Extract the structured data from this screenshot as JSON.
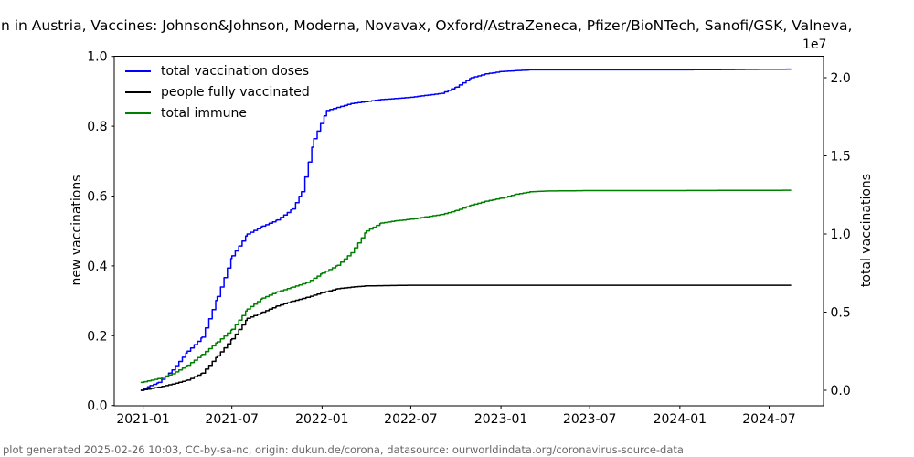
{
  "title_visible": "n in Austria, Vaccines: Johnson&Johnson, Moderna, Novavax, Oxford/AstraZeneca, Pfizer/BioNTech, Sanofi/GSK, Valneva,",
  "footer": "plot generated 2025-02-26 10:03, CC-by-sa-nc, origin: dukun.de/corona, datasource: ourworldindata.org/coronavirus-source-data",
  "axes": {
    "left": {
      "label": "new vaccinations",
      "ticks": [
        "0.0",
        "0.2",
        "0.4",
        "0.6",
        "0.8",
        "1.0"
      ],
      "range": [
        0.0,
        1.0
      ]
    },
    "right": {
      "label": "total vaccinations",
      "offset_text": "1e7",
      "ticks": [
        "0.0",
        "0.5",
        "1.0",
        "1.5",
        "2.0"
      ],
      "range": [
        0.0,
        2.0
      ]
    },
    "x": {
      "ticks": [
        "2021-01",
        "2021-07",
        "2022-01",
        "2022-07",
        "2023-01",
        "2023-07",
        "2024-01",
        "2024-07"
      ]
    }
  },
  "chart_data": {
    "type": "line",
    "title": "Vaccination in Austria (title clipped in image)",
    "xlabel": "",
    "ylabel_left": "new vaccinations",
    "ylabel_right": "total vaccinations",
    "x_unit": "date",
    "value_unit": "millions of vaccinations (plotted on right axis, scale 1e7)",
    "x_range": [
      "2020-12-27",
      "2024-08-15"
    ],
    "right_axis_range_1e7": [
      0.0,
      2.0
    ],
    "left_axis_range": [
      0.0,
      1.0
    ],
    "grid": false,
    "legend_position": "upper left",
    "line_style": "cumulative step curves",
    "series": [
      {
        "id": "total-vaccination-doses",
        "name": "total vaccination doses",
        "color": "#0000ff",
        "points": [
          [
            "2020-12-27",
            0.0
          ],
          [
            "2021-01-15",
            0.3
          ],
          [
            "2021-02-01",
            0.5
          ],
          [
            "2021-03-01",
            1.3
          ],
          [
            "2021-04-01",
            2.5
          ],
          [
            "2021-05-01",
            3.4
          ],
          [
            "2021-06-01",
            6.0
          ],
          [
            "2021-07-01",
            8.6
          ],
          [
            "2021-08-01",
            10.0
          ],
          [
            "2021-09-01",
            10.5
          ],
          [
            "2021-10-01",
            10.9
          ],
          [
            "2021-11-01",
            11.6
          ],
          [
            "2021-11-20",
            12.7
          ],
          [
            "2021-12-15",
            16.1
          ],
          [
            "2022-01-10",
            17.9
          ],
          [
            "2022-02-01",
            18.1
          ],
          [
            "2022-03-01",
            18.35
          ],
          [
            "2022-05-01",
            18.6
          ],
          [
            "2022-07-01",
            18.75
          ],
          [
            "2022-09-01",
            19.0
          ],
          [
            "2022-10-01",
            19.4
          ],
          [
            "2022-11-01",
            20.0
          ],
          [
            "2022-12-01",
            20.25
          ],
          [
            "2023-01-01",
            20.4
          ],
          [
            "2023-03-01",
            20.5
          ],
          [
            "2023-07-01",
            20.5
          ],
          [
            "2024-01-01",
            20.5
          ],
          [
            "2024-08-15",
            20.55
          ]
        ]
      },
      {
        "id": "people-fully-vaccinated",
        "name": "people fully vaccinated",
        "color": "#000000",
        "points": [
          [
            "2020-12-27",
            0.0
          ],
          [
            "2021-02-01",
            0.2
          ],
          [
            "2021-03-01",
            0.4
          ],
          [
            "2021-04-01",
            0.65
          ],
          [
            "2021-05-01",
            1.1
          ],
          [
            "2021-06-01",
            2.2
          ],
          [
            "2021-07-01",
            3.3
          ],
          [
            "2021-08-01",
            4.6
          ],
          [
            "2021-09-01",
            5.0
          ],
          [
            "2021-10-01",
            5.4
          ],
          [
            "2021-11-01",
            5.7
          ],
          [
            "2021-12-01",
            5.95
          ],
          [
            "2022-01-01",
            6.25
          ],
          [
            "2022-02-01",
            6.5
          ],
          [
            "2022-03-01",
            6.6
          ],
          [
            "2022-04-01",
            6.68
          ],
          [
            "2022-07-01",
            6.72
          ],
          [
            "2023-01-01",
            6.72
          ],
          [
            "2024-01-01",
            6.72
          ],
          [
            "2024-08-15",
            6.72
          ]
        ]
      },
      {
        "id": "total-immune",
        "name": "total immune",
        "color": "#008000",
        "points": [
          [
            "2020-12-27",
            0.5
          ],
          [
            "2021-02-01",
            0.75
          ],
          [
            "2021-03-01",
            1.05
          ],
          [
            "2021-04-01",
            1.6
          ],
          [
            "2021-05-01",
            2.3
          ],
          [
            "2021-06-01",
            3.1
          ],
          [
            "2021-07-01",
            3.9
          ],
          [
            "2021-08-01",
            5.2
          ],
          [
            "2021-09-01",
            5.9
          ],
          [
            "2021-10-01",
            6.3
          ],
          [
            "2021-11-01",
            6.6
          ],
          [
            "2021-12-01",
            6.9
          ],
          [
            "2022-01-01",
            7.5
          ],
          [
            "2022-02-01",
            8.0
          ],
          [
            "2022-03-01",
            8.8
          ],
          [
            "2022-04-01",
            10.2
          ],
          [
            "2022-05-01",
            10.7
          ],
          [
            "2022-06-01",
            10.85
          ],
          [
            "2022-07-01",
            10.95
          ],
          [
            "2022-08-01",
            11.1
          ],
          [
            "2022-09-01",
            11.25
          ],
          [
            "2022-10-01",
            11.5
          ],
          [
            "2022-11-01",
            11.85
          ],
          [
            "2022-12-01",
            12.1
          ],
          [
            "2023-01-01",
            12.3
          ],
          [
            "2023-02-01",
            12.55
          ],
          [
            "2023-03-01",
            12.7
          ],
          [
            "2023-04-01",
            12.75
          ],
          [
            "2023-07-01",
            12.78
          ],
          [
            "2024-01-01",
            12.78
          ],
          [
            "2024-08-15",
            12.8
          ]
        ]
      }
    ]
  }
}
